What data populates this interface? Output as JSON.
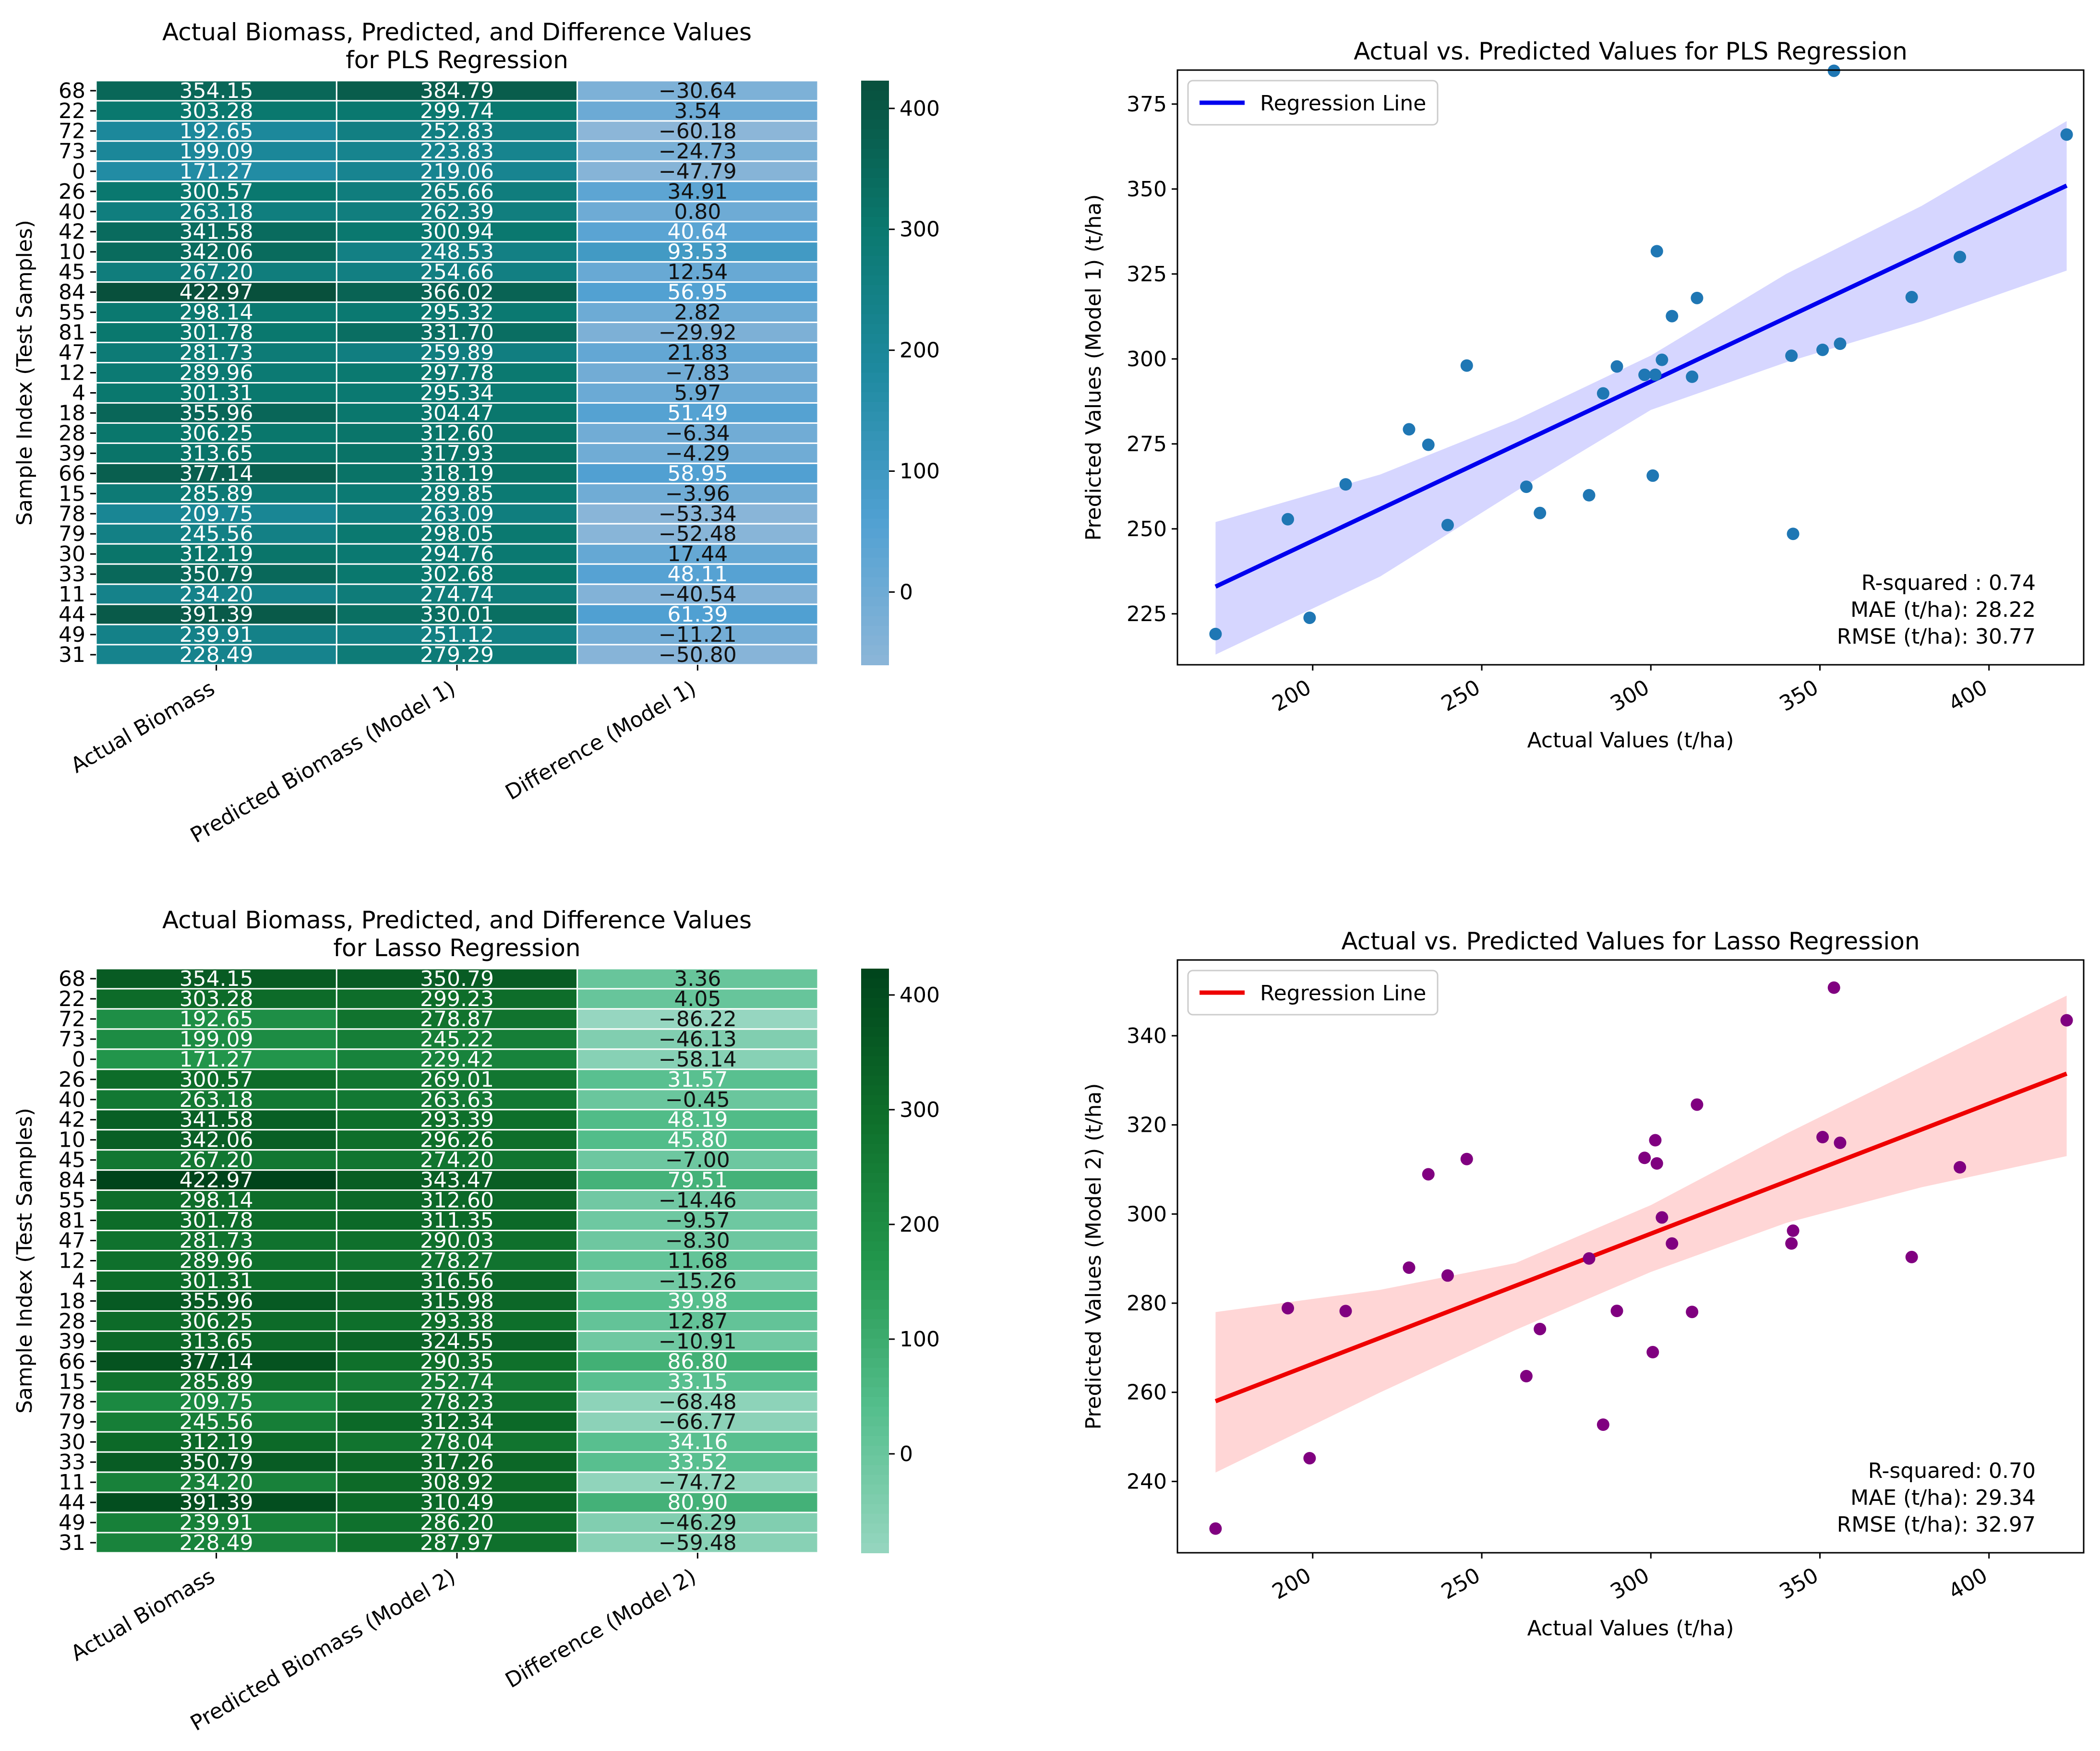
{
  "chart_data": [
    {
      "type": "heatmap",
      "title_line1": "Actual Biomass, Predicted, and Difference Values",
      "title_line2": "for PLS Regression",
      "ylabel": "Sample Index (Test Samples)",
      "row_labels": [
        "68",
        "22",
        "72",
        "73",
        "0",
        "26",
        "40",
        "42",
        "10",
        "45",
        "84",
        "55",
        "81",
        "47",
        "12",
        "4",
        "18",
        "28",
        "39",
        "66",
        "15",
        "78",
        "79",
        "30",
        "33",
        "11",
        "44",
        "49",
        "31"
      ],
      "columns": [
        "Actual Biomass",
        "Predicted Biomass (Model 1)",
        "Difference (Model 1)"
      ],
      "cells": [
        [
          "354.15",
          "384.79",
          "−30.64"
        ],
        [
          "303.28",
          "299.74",
          "3.54"
        ],
        [
          "192.65",
          "252.83",
          "−60.18"
        ],
        [
          "199.09",
          "223.83",
          "−24.73"
        ],
        [
          "171.27",
          "219.06",
          "−47.79"
        ],
        [
          "300.57",
          "265.66",
          "34.91"
        ],
        [
          "263.18",
          "262.39",
          "0.80"
        ],
        [
          "341.58",
          "300.94",
          "40.64"
        ],
        [
          "342.06",
          "248.53",
          "93.53"
        ],
        [
          "267.20",
          "254.66",
          "12.54"
        ],
        [
          "422.97",
          "366.02",
          "56.95"
        ],
        [
          "298.14",
          "295.32",
          "2.82"
        ],
        [
          "301.78",
          "331.70",
          "−29.92"
        ],
        [
          "281.73",
          "259.89",
          "21.83"
        ],
        [
          "289.96",
          "297.78",
          "−7.83"
        ],
        [
          "301.31",
          "295.34",
          "5.97"
        ],
        [
          "355.96",
          "304.47",
          "51.49"
        ],
        [
          "306.25",
          "312.60",
          "−6.34"
        ],
        [
          "313.65",
          "317.93",
          "−4.29"
        ],
        [
          "377.14",
          "318.19",
          "58.95"
        ],
        [
          "285.89",
          "289.85",
          "−3.96"
        ],
        [
          "209.75",
          "263.09",
          "−53.34"
        ],
        [
          "245.56",
          "298.05",
          "−52.48"
        ],
        [
          "312.19",
          "294.76",
          "17.44"
        ],
        [
          "350.79",
          "302.68",
          "48.11"
        ],
        [
          "234.20",
          "274.74",
          "−40.54"
        ],
        [
          "391.39",
          "330.01",
          "61.39"
        ],
        [
          "239.91",
          "251.12",
          "−11.21"
        ],
        [
          "228.49",
          "279.29",
          "−50.80"
        ]
      ],
      "colorbar": {
        "ticks": [
          "0",
          "100",
          "200",
          "300",
          "400"
        ],
        "range": [
          -60.18,
          422.97
        ],
        "colormap": "teal"
      }
    },
    {
      "type": "scatter",
      "title": "Actual vs. Predicted Values for PLS Regression",
      "xlabel": "Actual Values (t/ha)",
      "ylabel": "Predicted Values (Model 1) (t/ha)",
      "xlim": [
        160,
        428
      ],
      "ylim": [
        210,
        385
      ],
      "xticks": [
        200,
        250,
        300,
        350,
        400
      ],
      "yticks": [
        225,
        250,
        275,
        300,
        325,
        350,
        375
      ],
      "legend": "Regression Line",
      "line_color": "#0000ee",
      "band_color": "#d6d6ff",
      "point_color": "#1f77b4",
      "stats": [
        "R-squared : 0.74",
        "MAE (t/ha): 28.22",
        "RMSE (t/ha): 30.77"
      ],
      "regression": {
        "x": [
          171.27,
          422.97
        ],
        "y": [
          233,
          351
        ]
      },
      "band_upper": [
        [
          171.27,
          252
        ],
        [
          220,
          266
        ],
        [
          260,
          282
        ],
        [
          300,
          301
        ],
        [
          340,
          325
        ],
        [
          380,
          345
        ],
        [
          422.97,
          370
        ]
      ],
      "band_lower": [
        [
          171.27,
          213
        ],
        [
          220,
          236
        ],
        [
          260,
          261
        ],
        [
          300,
          285
        ],
        [
          340,
          299
        ],
        [
          380,
          311
        ],
        [
          422.97,
          326
        ]
      ],
      "points": [
        [
          354.15,
          384.79
        ],
        [
          303.28,
          299.74
        ],
        [
          192.65,
          252.83
        ],
        [
          199.09,
          223.83
        ],
        [
          171.27,
          219.06
        ],
        [
          300.57,
          265.66
        ],
        [
          263.18,
          262.39
        ],
        [
          341.58,
          300.94
        ],
        [
          342.06,
          248.53
        ],
        [
          267.2,
          254.66
        ],
        [
          422.97,
          366.02
        ],
        [
          298.14,
          295.32
        ],
        [
          301.78,
          331.7
        ],
        [
          281.73,
          259.89
        ],
        [
          289.96,
          297.78
        ],
        [
          301.31,
          295.34
        ],
        [
          355.96,
          304.47
        ],
        [
          306.25,
          312.6
        ],
        [
          313.65,
          317.93
        ],
        [
          377.14,
          318.19
        ],
        [
          285.89,
          289.85
        ],
        [
          209.75,
          263.09
        ],
        [
          245.56,
          298.05
        ],
        [
          312.19,
          294.76
        ],
        [
          350.79,
          302.68
        ],
        [
          234.2,
          274.74
        ],
        [
          391.39,
          330.01
        ],
        [
          239.91,
          251.12
        ],
        [
          228.49,
          279.29
        ]
      ]
    },
    {
      "type": "heatmap",
      "title_line1": "Actual Biomass, Predicted, and Difference Values",
      "title_line2": "for Lasso Regression",
      "ylabel": "Sample Index (Test Samples)",
      "row_labels": [
        "68",
        "22",
        "72",
        "73",
        "0",
        "26",
        "40",
        "42",
        "10",
        "45",
        "84",
        "55",
        "81",
        "47",
        "12",
        "4",
        "18",
        "28",
        "39",
        "66",
        "15",
        "78",
        "79",
        "30",
        "33",
        "11",
        "44",
        "49",
        "31"
      ],
      "columns": [
        "Actual Biomass",
        "Predicted Biomass (Model 2)",
        "Difference (Model 2)"
      ],
      "cells": [
        [
          "354.15",
          "350.79",
          "3.36"
        ],
        [
          "303.28",
          "299.23",
          "4.05"
        ],
        [
          "192.65",
          "278.87",
          "−86.22"
        ],
        [
          "199.09",
          "245.22",
          "−46.13"
        ],
        [
          "171.27",
          "229.42",
          "−58.14"
        ],
        [
          "300.57",
          "269.01",
          "31.57"
        ],
        [
          "263.18",
          "263.63",
          "−0.45"
        ],
        [
          "341.58",
          "293.39",
          "48.19"
        ],
        [
          "342.06",
          "296.26",
          "45.80"
        ],
        [
          "267.20",
          "274.20",
          "−7.00"
        ],
        [
          "422.97",
          "343.47",
          "79.51"
        ],
        [
          "298.14",
          "312.60",
          "−14.46"
        ],
        [
          "301.78",
          "311.35",
          "−9.57"
        ],
        [
          "281.73",
          "290.03",
          "−8.30"
        ],
        [
          "289.96",
          "278.27",
          "11.68"
        ],
        [
          "301.31",
          "316.56",
          "−15.26"
        ],
        [
          "355.96",
          "315.98",
          "39.98"
        ],
        [
          "306.25",
          "293.38",
          "12.87"
        ],
        [
          "313.65",
          "324.55",
          "−10.91"
        ],
        [
          "377.14",
          "290.35",
          "86.80"
        ],
        [
          "285.89",
          "252.74",
          "33.15"
        ],
        [
          "209.75",
          "278.23",
          "−68.48"
        ],
        [
          "245.56",
          "312.34",
          "−66.77"
        ],
        [
          "312.19",
          "278.04",
          "34.16"
        ],
        [
          "350.79",
          "317.26",
          "33.52"
        ],
        [
          "234.20",
          "308.92",
          "−74.72"
        ],
        [
          "391.39",
          "310.49",
          "80.90"
        ],
        [
          "239.91",
          "286.20",
          "−46.29"
        ],
        [
          "228.49",
          "287.97",
          "−59.48"
        ]
      ],
      "colorbar": {
        "ticks": [
          "0",
          "100",
          "200",
          "300",
          "400"
        ],
        "range": [
          -86.22,
          422.97
        ],
        "colormap": "green"
      }
    },
    {
      "type": "scatter",
      "title": "Actual vs. Predicted Values for Lasso Regression",
      "xlabel": "Actual Values (t/ha)",
      "ylabel": "Predicted Values (Model 2) (t/ha)",
      "xlim": [
        160,
        428
      ],
      "ylim": [
        224,
        357
      ],
      "xticks": [
        200,
        250,
        300,
        350,
        400
      ],
      "yticks": [
        240,
        260,
        280,
        300,
        320,
        340
      ],
      "legend": "Regression Line",
      "line_color": "#ee0000",
      "band_color": "#ffd6d6",
      "point_color": "#800080",
      "stats": [
        "R-squared: 0.70",
        "MAE (t/ha): 29.34",
        "RMSE (t/ha): 32.97"
      ],
      "regression": {
        "x": [
          171.27,
          422.97
        ],
        "y": [
          258,
          331.5
        ]
      },
      "band_upper": [
        [
          171.27,
          278
        ],
        [
          220,
          283
        ],
        [
          260,
          289
        ],
        [
          300,
          302
        ],
        [
          340,
          318
        ],
        [
          380,
          333
        ],
        [
          422.97,
          349
        ]
      ],
      "band_lower": [
        [
          171.27,
          242
        ],
        [
          220,
          260
        ],
        [
          260,
          274
        ],
        [
          300,
          287
        ],
        [
          340,
          298
        ],
        [
          380,
          306
        ],
        [
          422.97,
          313
        ]
      ],
      "points": [
        [
          354.15,
          350.79
        ],
        [
          303.28,
          299.23
        ],
        [
          192.65,
          278.87
        ],
        [
          199.09,
          245.22
        ],
        [
          171.27,
          229.42
        ],
        [
          300.57,
          269.01
        ],
        [
          263.18,
          263.63
        ],
        [
          341.58,
          293.39
        ],
        [
          342.06,
          296.26
        ],
        [
          267.2,
          274.2
        ],
        [
          422.97,
          343.47
        ],
        [
          298.14,
          312.6
        ],
        [
          301.78,
          311.35
        ],
        [
          281.73,
          290.03
        ],
        [
          289.96,
          278.27
        ],
        [
          301.31,
          316.56
        ],
        [
          355.96,
          315.98
        ],
        [
          306.25,
          293.38
        ],
        [
          313.65,
          324.55
        ],
        [
          377.14,
          290.35
        ],
        [
          285.89,
          252.74
        ],
        [
          209.75,
          278.23
        ],
        [
          245.56,
          312.34
        ],
        [
          312.19,
          278.04
        ],
        [
          350.79,
          317.26
        ],
        [
          234.2,
          308.92
        ],
        [
          391.39,
          310.49
        ],
        [
          239.91,
          286.2
        ],
        [
          228.49,
          287.97
        ]
      ]
    }
  ]
}
